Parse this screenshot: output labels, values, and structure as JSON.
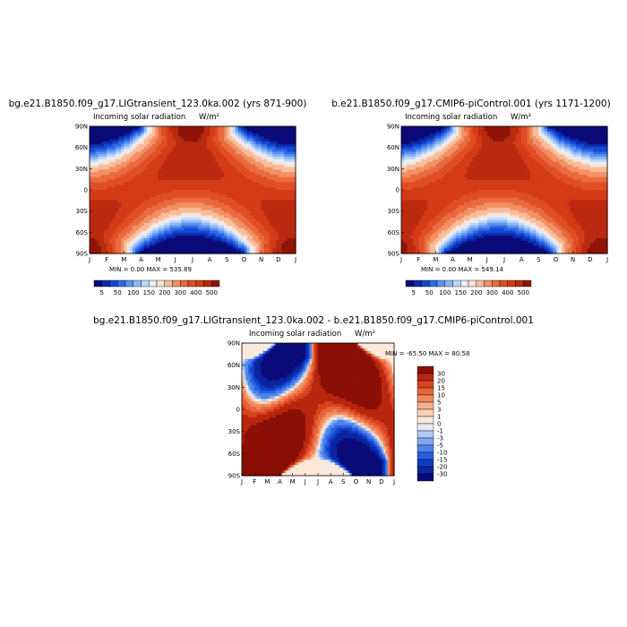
{
  "panels": [
    {
      "title": "bg.e21.B1850.f09_g17.LIGtransient_123.0ka.002 (yrs 871-900)",
      "subtitle_left": "Incoming solar radiation",
      "subtitle_right": "W/m²",
      "min_max": "MIN =    0.00 MAX = 535.89"
    },
    {
      "title": "b.e21.B1850.f09_g17.CMIP6-piControl.001 (yrs 1171-1200)",
      "subtitle_left": "Incoming solar radiation",
      "subtitle_right": "W/m²",
      "min_max": "MIN =    0.00 MAX = 549.14"
    },
    {
      "title": "bg.e21.B1850.f09_g17.LIGtransient_123.0ka.002 - b.e21.B1850.f09_g17.CMIP6-piControl.001",
      "subtitle_left": "Incoming solar radiation",
      "subtitle_right": "W/m²",
      "min_max": "MIN = -65.50 MAX = 80.58"
    }
  ],
  "chart_data": [
    {
      "type": "heatmap",
      "title": "bg.e21.B1850.f09_g17.LIGtransient_123.0ka.002 (yrs 871-900)",
      "subtitle": "Incoming solar radiation",
      "units": "W/m²",
      "x_tick_labels": [
        "J",
        "F",
        "M",
        "A",
        "M",
        "J",
        "J",
        "A",
        "S",
        "O",
        "N",
        "D",
        "J"
      ],
      "y_tick_labels": [
        "90N",
        "60N",
        "30N",
        "0",
        "30S",
        "60S",
        "90S"
      ],
      "ylim": [
        -90,
        90
      ],
      "min": 0.0,
      "max": 535.89,
      "colorbar_labels": [
        "5",
        "50",
        "100",
        "150",
        "200",
        "300",
        "400",
        "500"
      ],
      "colorbar_levels": [
        0,
        5,
        25,
        50,
        75,
        100,
        125,
        150,
        175,
        200,
        250,
        300,
        350,
        400,
        450,
        500
      ],
      "colorbar_colors": [
        "#0a0a78",
        "#0b2aa7",
        "#1447d6",
        "#2e6ae8",
        "#5b93ef",
        "#8db6f4",
        "#bcd6f8",
        "#e6eefb",
        "#fbe3d3",
        "#f7bd9b",
        "#f39066",
        "#ea6a3f",
        "#e04e26",
        "#d43b17",
        "#bb2a10",
        "#8f1508"
      ]
    },
    {
      "type": "heatmap",
      "title": "b.e21.B1850.f09_g17.CMIP6-piControl.001 (yrs 1171-1200)",
      "subtitle": "Incoming solar radiation",
      "units": "W/m²",
      "x_tick_labels": [
        "J",
        "F",
        "M",
        "A",
        "M",
        "J",
        "J",
        "A",
        "S",
        "O",
        "N",
        "D",
        "J"
      ],
      "y_tick_labels": [
        "90N",
        "60N",
        "30N",
        "0",
        "30S",
        "60S",
        "90S"
      ],
      "ylim": [
        -90,
        90
      ],
      "min": 0.0,
      "max": 549.14,
      "colorbar_labels": [
        "5",
        "50",
        "100",
        "150",
        "200",
        "300",
        "400",
        "500"
      ],
      "colorbar_levels": [
        0,
        5,
        25,
        50,
        75,
        100,
        125,
        150,
        175,
        200,
        250,
        300,
        350,
        400,
        450,
        500
      ],
      "colorbar_colors": [
        "#0a0a78",
        "#0b2aa7",
        "#1447d6",
        "#2e6ae8",
        "#5b93ef",
        "#8db6f4",
        "#bcd6f8",
        "#e6eefb",
        "#fbe3d3",
        "#f7bd9b",
        "#f39066",
        "#ea6a3f",
        "#e04e26",
        "#d43b17",
        "#bb2a10",
        "#8f1508"
      ]
    },
    {
      "type": "heatmap",
      "title": "bg.e21.B1850.f09_g17.LIGtransient_123.0ka.002 - b.e21.B1850.f09_g17.CMIP6-piControl.001",
      "subtitle": "Incoming solar radiation",
      "units": "W/m²",
      "x_tick_labels": [
        "J",
        "F",
        "M",
        "A",
        "M",
        "J",
        "J",
        "A",
        "S",
        "O",
        "N",
        "D",
        "J"
      ],
      "y_tick_labels": [
        "90N",
        "60N",
        "30N",
        "0",
        "30S",
        "60S",
        "90S"
      ],
      "ylim": [
        -90,
        90
      ],
      "min": -65.5,
      "max": 80.58,
      "colorbar_labels": [
        "30",
        "20",
        "15",
        "10",
        "5",
        "3",
        "1",
        "0",
        "-1",
        "-3",
        "-5",
        "-10",
        "-15",
        "-20",
        "-30"
      ],
      "colorbar_levels": [
        -40,
        -30,
        -20,
        -15,
        -10,
        -5,
        -3,
        -1,
        0,
        1,
        3,
        5,
        10,
        15,
        20,
        30
      ],
      "colorbar_colors": [
        "#0a0a78",
        "#0b24a0",
        "#0d3fc8",
        "#2a5fe0",
        "#4f85ea",
        "#7fa7f0",
        "#b0c9f5",
        "#e4ecfa",
        "#fbe9dc",
        "#f9d2b8",
        "#f6b08a",
        "#f08a5e",
        "#e8643a",
        "#d9431f",
        "#b8260f",
        "#8a0f05"
      ]
    }
  ]
}
